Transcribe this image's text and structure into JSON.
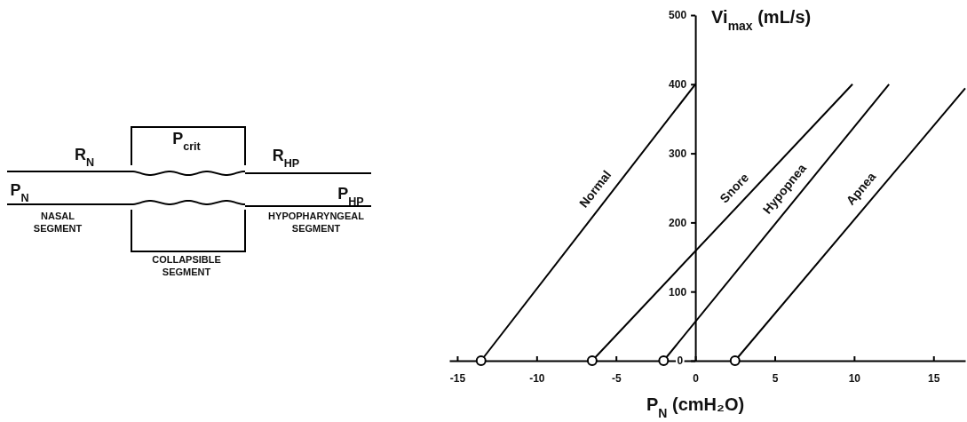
{
  "chart_data": {
    "type": "line",
    "xlabel": "P$_{N}$ (cmH₂O)",
    "ylabel": "Vi$_{max}$ (mL/s)",
    "xlim": [
      -15.5,
      17
    ],
    "xticks": [
      -15,
      -10,
      -5,
      0,
      5,
      10,
      15
    ],
    "ylim": [
      0,
      500
    ],
    "yticks": [
      0,
      100,
      200,
      300,
      400,
      500
    ],
    "grid": false,
    "marker": "none",
    "line_style": "solid",
    "series": [
      {
        "name": "Normal",
        "color": "#000000",
        "x": [
          -13.5,
          0
        ],
        "values": [
          0,
          400
        ]
      },
      {
        "name": "Snore",
        "color": "#000000",
        "x": [
          -6.5,
          9.9
        ],
        "values": [
          0,
          400
        ]
      },
      {
        "name": "Hypopnea",
        "color": "#000000",
        "x": [
          -2,
          12.2
        ],
        "values": [
          0,
          400
        ]
      },
      {
        "name": "Apnea",
        "color": "#000000",
        "x": [
          2.5,
          17
        ],
        "values": [
          0,
          394
        ]
      },
      {
        "type": "scatter",
        "marker": "circle",
        "color": "#000000",
        "x": [
          -13.5,
          -6.5,
          -2,
          2.5
        ],
        "values": [
          0,
          0,
          0,
          0
        ]
      }
    ],
    "annotations": [
      "R$_{N}$",
      "P$_{crit}$",
      "R$_{HP}$",
      "P$_{N}$",
      "P$_{HP}$",
      "NASAL SEGMENT",
      "HYPOPHARYNGEAL SEGMENT",
      "COLLAPSIBLE SEGMENT"
    ]
  }
}
